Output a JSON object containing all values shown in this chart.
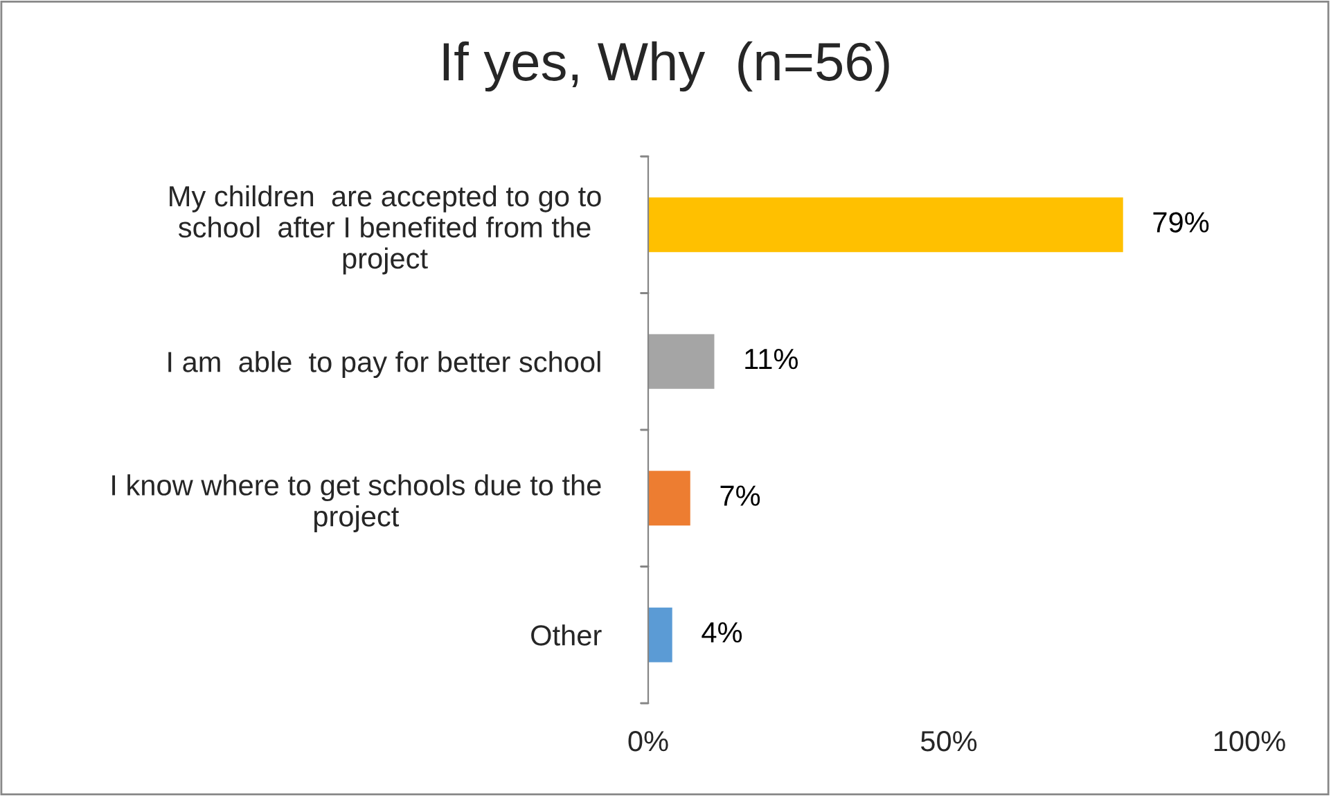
{
  "chart_data": {
    "type": "bar",
    "orientation": "horizontal",
    "title": "If yes, Why  (n=56)",
    "categories": [
      "My children  are accepted to go to\nschool  after I benefited from the\nproject",
      "I am  able  to pay for better school",
      "I know where to get schools due to the\nproject",
      "Other"
    ],
    "values": [
      79,
      11,
      7,
      4
    ],
    "colors": [
      "#ffc000",
      "#a5a5a5",
      "#ed7d31",
      "#5b9bd5"
    ],
    "value_labels": [
      "79%",
      "11%",
      "7%",
      "4%"
    ],
    "xlim": [
      0,
      100
    ],
    "xticks": [
      {
        "value": 0,
        "label": "0%"
      },
      {
        "value": 50,
        "label": "50%"
      },
      {
        "value": 100,
        "label": "100%"
      }
    ],
    "grid": false,
    "legend": false
  }
}
